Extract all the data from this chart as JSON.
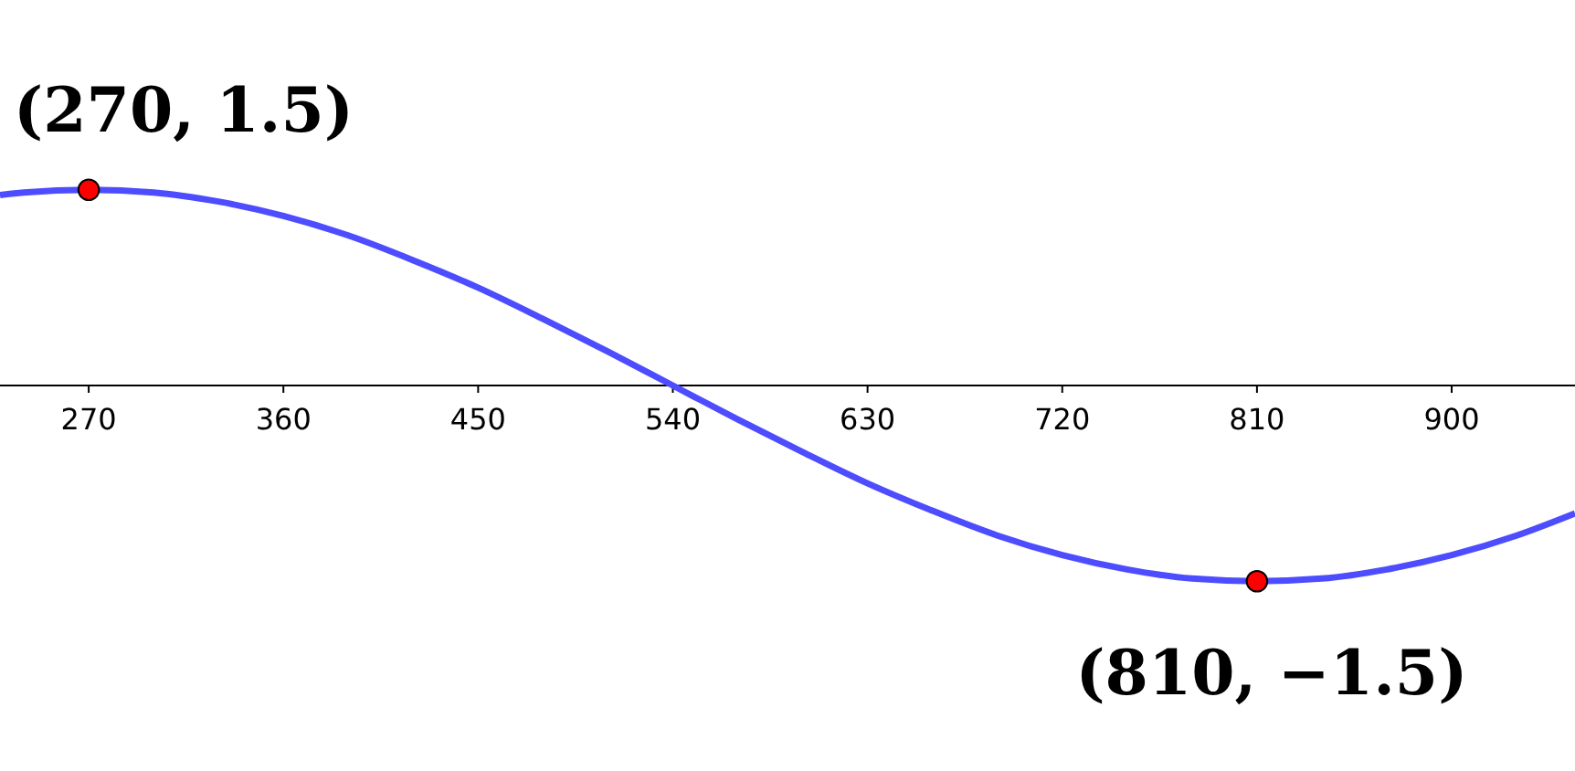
{
  "chart_data": {
    "type": "line",
    "x": [
      229,
      240,
      270,
      300,
      330,
      360,
      390,
      420,
      450,
      480,
      510,
      540,
      570,
      600,
      630,
      660,
      690,
      720,
      750,
      780,
      810,
      840,
      870,
      900,
      930,
      957
    ],
    "series": [
      {
        "color": "#4d4dff",
        "marker": "none",
        "values": [
          1.46,
          1.48,
          1.5,
          1.48,
          1.41,
          1.3,
          1.15,
          0.96,
          0.75,
          0.51,
          0.26,
          0,
          -0.26,
          -0.51,
          -0.75,
          -0.96,
          -1.15,
          -1.3,
          -1.41,
          -1.48,
          -1.5,
          -1.48,
          -1.41,
          -1.3,
          -1.15,
          -0.98
        ]
      },
      {
        "type": "scatter",
        "color": "#ff0000",
        "marker": "circle",
        "x": [
          270,
          810
        ],
        "values": [
          1.5,
          -1.5
        ],
        "value_labels": [
          "(270, 1.5)",
          "(810, −1.5)"
        ]
      }
    ],
    "xlim": [
      229,
      957
    ],
    "xticks": [
      270,
      360,
      450,
      540,
      630,
      720,
      810,
      900
    ],
    "tick_labels": "x",
    "grid": false
  }
}
